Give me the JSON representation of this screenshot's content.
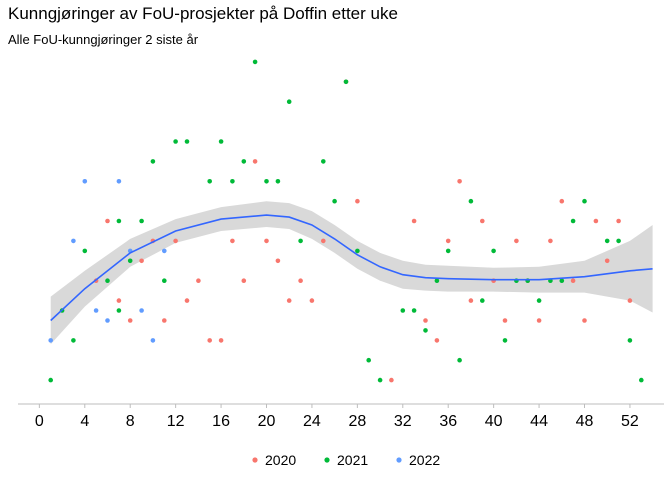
{
  "title": "Kunngjøringer av FoU-prosjekter på Doffin etter uke",
  "subtitle": "Alle FoU-kunngjøringer 2 siste år",
  "chart_data": {
    "type": "scatter",
    "x_ticks": [
      0,
      4,
      8,
      12,
      16,
      20,
      24,
      28,
      32,
      36,
      40,
      44,
      48,
      52
    ],
    "x_range": [
      -1,
      55
    ],
    "y_range": [
      -0.2,
      17.5
    ],
    "grid": false,
    "legend_position": "bottom",
    "colors": {
      "2020": "#F8766D",
      "2021": "#00BA38",
      "2022": "#619CFF",
      "smooth_line": "#3366FF",
      "smooth_band": "#D9D9D9"
    },
    "series": [
      {
        "name": "2020",
        "points": [
          {
            "x": 5,
            "y": 6
          },
          {
            "x": 6,
            "y": 9
          },
          {
            "x": 7,
            "y": 5
          },
          {
            "x": 8,
            "y": 4
          },
          {
            "x": 9,
            "y": 7
          },
          {
            "x": 10,
            "y": 8
          },
          {
            "x": 11,
            "y": 4
          },
          {
            "x": 12,
            "y": 8
          },
          {
            "x": 13,
            "y": 5
          },
          {
            "x": 14,
            "y": 6
          },
          {
            "x": 15,
            "y": 3
          },
          {
            "x": 16,
            "y": 3
          },
          {
            "x": 17,
            "y": 8
          },
          {
            "x": 18,
            "y": 6
          },
          {
            "x": 19,
            "y": 12
          },
          {
            "x": 20,
            "y": 8
          },
          {
            "x": 21,
            "y": 7
          },
          {
            "x": 22,
            "y": 5
          },
          {
            "x": 23,
            "y": 6
          },
          {
            "x": 24,
            "y": 5
          },
          {
            "x": 25,
            "y": 8
          },
          {
            "x": 27,
            "y": 16
          },
          {
            "x": 28,
            "y": 10
          },
          {
            "x": 31,
            "y": 1
          },
          {
            "x": 33,
            "y": 9
          },
          {
            "x": 34,
            "y": 4
          },
          {
            "x": 35,
            "y": 3
          },
          {
            "x": 36,
            "y": 8
          },
          {
            "x": 37,
            "y": 11
          },
          {
            "x": 38,
            "y": 5
          },
          {
            "x": 39,
            "y": 9
          },
          {
            "x": 40,
            "y": 6
          },
          {
            "x": 41,
            "y": 4
          },
          {
            "x": 42,
            "y": 8
          },
          {
            "x": 43,
            "y": 6
          },
          {
            "x": 44,
            "y": 4
          },
          {
            "x": 45,
            "y": 8
          },
          {
            "x": 46,
            "y": 10
          },
          {
            "x": 47,
            "y": 6
          },
          {
            "x": 48,
            "y": 4
          },
          {
            "x": 49,
            "y": 9
          },
          {
            "x": 50,
            "y": 7
          },
          {
            "x": 51,
            "y": 9
          },
          {
            "x": 52,
            "y": 5
          }
        ]
      },
      {
        "name": "2021",
        "points": [
          {
            "x": 1,
            "y": 1
          },
          {
            "x": 2,
            "y": 4.5
          },
          {
            "x": 3,
            "y": 3
          },
          {
            "x": 4,
            "y": 7.5
          },
          {
            "x": 6,
            "y": 6
          },
          {
            "x": 7,
            "y": 9
          },
          {
            "x": 7,
            "y": 4.5
          },
          {
            "x": 8,
            "y": 7
          },
          {
            "x": 9,
            "y": 9
          },
          {
            "x": 10,
            "y": 12
          },
          {
            "x": 11,
            "y": 6
          },
          {
            "x": 12,
            "y": 13
          },
          {
            "x": 13,
            "y": 13
          },
          {
            "x": 15,
            "y": 11
          },
          {
            "x": 16,
            "y": 13
          },
          {
            "x": 17,
            "y": 11
          },
          {
            "x": 18,
            "y": 12
          },
          {
            "x": 19,
            "y": 17
          },
          {
            "x": 20,
            "y": 11
          },
          {
            "x": 21,
            "y": 11
          },
          {
            "x": 22,
            "y": 15
          },
          {
            "x": 23,
            "y": 8
          },
          {
            "x": 25,
            "y": 12
          },
          {
            "x": 26,
            "y": 10
          },
          {
            "x": 27,
            "y": 16
          },
          {
            "x": 28,
            "y": 7.5
          },
          {
            "x": 29,
            "y": 2
          },
          {
            "x": 30,
            "y": 1
          },
          {
            "x": 32,
            "y": 4.5
          },
          {
            "x": 33,
            "y": 4.5
          },
          {
            "x": 34,
            "y": 3.5
          },
          {
            "x": 35,
            "y": 6
          },
          {
            "x": 36,
            "y": 7.5
          },
          {
            "x": 37,
            "y": 2
          },
          {
            "x": 38,
            "y": 10
          },
          {
            "x": 39,
            "y": 5
          },
          {
            "x": 40,
            "y": 7.5
          },
          {
            "x": 41,
            "y": 3
          },
          {
            "x": 42,
            "y": 6
          },
          {
            "x": 43,
            "y": 6
          },
          {
            "x": 44,
            "y": 5
          },
          {
            "x": 45,
            "y": 6
          },
          {
            "x": 46,
            "y": 6
          },
          {
            "x": 47,
            "y": 9
          },
          {
            "x": 48,
            "y": 10
          },
          {
            "x": 50,
            "y": 8
          },
          {
            "x": 51,
            "y": 8
          },
          {
            "x": 52,
            "y": 3
          },
          {
            "x": 53,
            "y": 1
          }
        ]
      },
      {
        "name": "2022",
        "points": [
          {
            "x": 1,
            "y": 3
          },
          {
            "x": 3,
            "y": 8
          },
          {
            "x": 4,
            "y": 11
          },
          {
            "x": 5,
            "y": 4.5
          },
          {
            "x": 6,
            "y": 4
          },
          {
            "x": 7,
            "y": 11
          },
          {
            "x": 8,
            "y": 7.5
          },
          {
            "x": 9,
            "y": 4.5
          },
          {
            "x": 10,
            "y": 3
          },
          {
            "x": 11,
            "y": 7.5
          }
        ]
      }
    ],
    "smooth": {
      "x": [
        1,
        4,
        8,
        12,
        16,
        20,
        22,
        24,
        26,
        28,
        30,
        32,
        34,
        36,
        40,
        44,
        48,
        52,
        54
      ],
      "y": [
        4.0,
        5.6,
        7.4,
        8.5,
        9.1,
        9.3,
        9.2,
        8.8,
        8.1,
        7.3,
        6.7,
        6.3,
        6.15,
        6.1,
        6.05,
        6.05,
        6.2,
        6.5,
        6.6
      ],
      "lo": [
        2.8,
        4.7,
        6.7,
        7.9,
        8.5,
        8.7,
        8.6,
        8.1,
        7.4,
        6.6,
        6.0,
        5.6,
        5.5,
        5.45,
        5.45,
        5.4,
        5.4,
        5.0,
        4.4
      ],
      "hi": [
        5.2,
        6.5,
        8.1,
        9.1,
        9.7,
        10.0,
        9.9,
        9.5,
        8.8,
        8.0,
        7.4,
        7.0,
        6.8,
        6.75,
        6.65,
        6.7,
        7.0,
        8.0,
        8.8
      ]
    }
  }
}
